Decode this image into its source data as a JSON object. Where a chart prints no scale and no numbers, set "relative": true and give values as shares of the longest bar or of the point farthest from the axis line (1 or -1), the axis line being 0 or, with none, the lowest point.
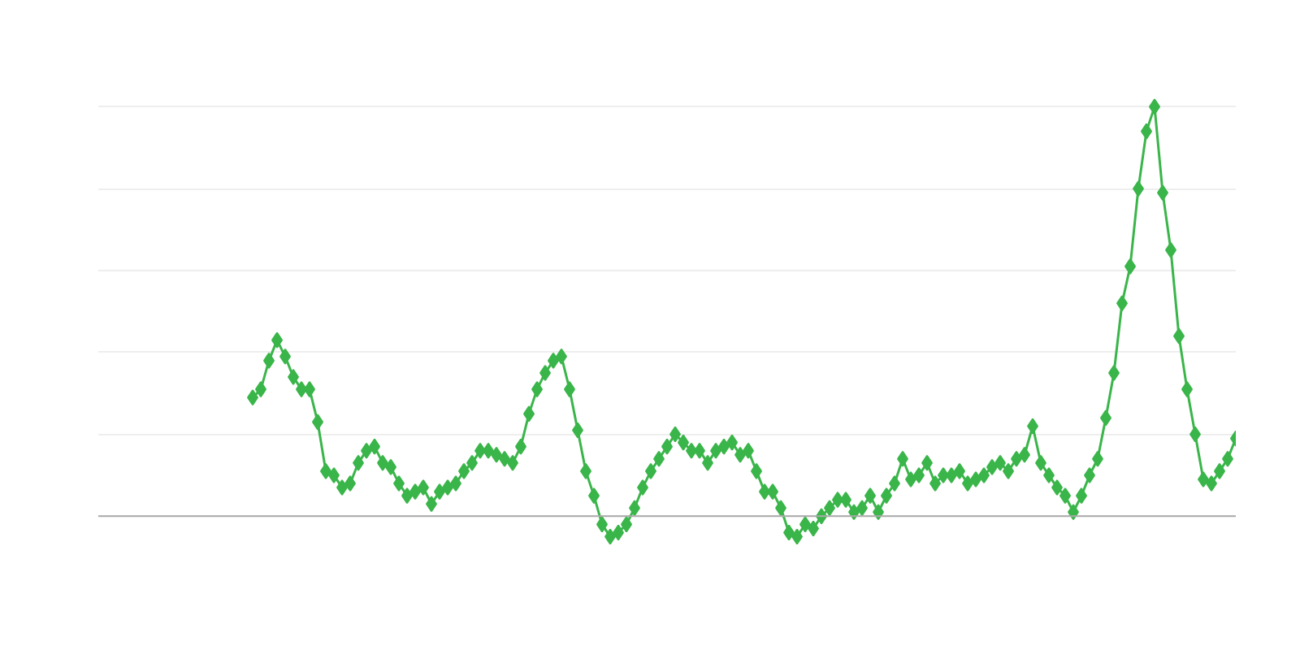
{
  "chart_data": {
    "type": "line",
    "relative": true,
    "marker": "diamond",
    "grid": "y",
    "categories": [
      null,
      null,
      null,
      null,
      null,
      null,
      null,
      null,
      null,
      null,
      null,
      null,
      null,
      null,
      null,
      null,
      null,
      null,
      null,
      null,
      null,
      null,
      null,
      null,
      null,
      null,
      null,
      null,
      null,
      null,
      null,
      null,
      null,
      null,
      null,
      null,
      null,
      null,
      null,
      null,
      null,
      null,
      null,
      null,
      null,
      null,
      null,
      null,
      null,
      null,
      null,
      null,
      null,
      null,
      null,
      null,
      null,
      null,
      null,
      null,
      null,
      null,
      null,
      null,
      null,
      null,
      null,
      null,
      null,
      null,
      null,
      null,
      null,
      null,
      null,
      null,
      null,
      null,
      null,
      null,
      null,
      null,
      null,
      null,
      null,
      null,
      null,
      null,
      null,
      null,
      null,
      null,
      null,
      null,
      null,
      null,
      null,
      null,
      null,
      null,
      null,
      null,
      null,
      null,
      null,
      null,
      null,
      null,
      null,
      null,
      null,
      null,
      null,
      null,
      null,
      null,
      null,
      null,
      null,
      null,
      null,
      null,
      null,
      null,
      null,
      null,
      null,
      null,
      null,
      null,
      null,
      null,
      null,
      null,
      null,
      null,
      null,
      null,
      null,
      null,
      null
    ],
    "series": [
      {
        "color": "#3ab54a",
        "values": [
          null,
          null,
          null,
          null,
          null,
          null,
          null,
          null,
          null,
          null,
          null,
          null,
          null,
          null,
          null,
          null,
          null,
          null,
          null,
          0.29,
          0.31,
          0.38,
          0.43,
          0.39,
          0.34,
          0.31,
          0.31,
          0.23,
          0.11,
          0.1,
          0.07,
          0.08,
          0.13,
          0.16,
          0.17,
          0.13,
          0.12,
          0.08,
          0.05,
          0.06,
          0.07,
          0.03,
          0.06,
          0.07,
          0.08,
          0.11,
          0.13,
          0.16,
          0.16,
          0.15,
          0.14,
          0.13,
          0.17,
          0.25,
          0.31,
          0.35,
          0.38,
          0.39,
          0.31,
          0.21,
          0.11,
          0.05,
          -0.02,
          -0.05,
          -0.04,
          -0.02,
          0.02,
          0.07,
          0.11,
          0.14,
          0.17,
          0.2,
          0.18,
          0.16,
          0.16,
          0.13,
          0.16,
          0.17,
          0.18,
          0.15,
          0.16,
          0.11,
          0.06,
          0.06,
          0.02,
          -0.04,
          -0.05,
          -0.02,
          -0.03,
          0,
          0.02,
          0.04,
          0.04,
          0.01,
          0.02,
          0.05,
          0.01,
          0.05,
          0.08,
          0.14,
          0.09,
          0.1,
          0.13,
          0.08,
          0.1,
          0.1,
          0.11,
          0.08,
          0.09,
          0.1,
          0.12,
          0.13,
          0.11,
          0.14,
          0.15,
          0.22,
          0.13,
          0.1,
          0.07,
          0.05,
          0.01,
          0.05,
          0.1,
          0.14,
          0.24,
          0.35,
          0.52,
          0.61,
          0.8,
          0.94,
          1.0,
          0.79,
          0.65,
          0.44,
          0.31,
          0.2,
          0.09,
          0.08,
          0.11,
          0.14,
          0.19
        ]
      }
    ]
  }
}
